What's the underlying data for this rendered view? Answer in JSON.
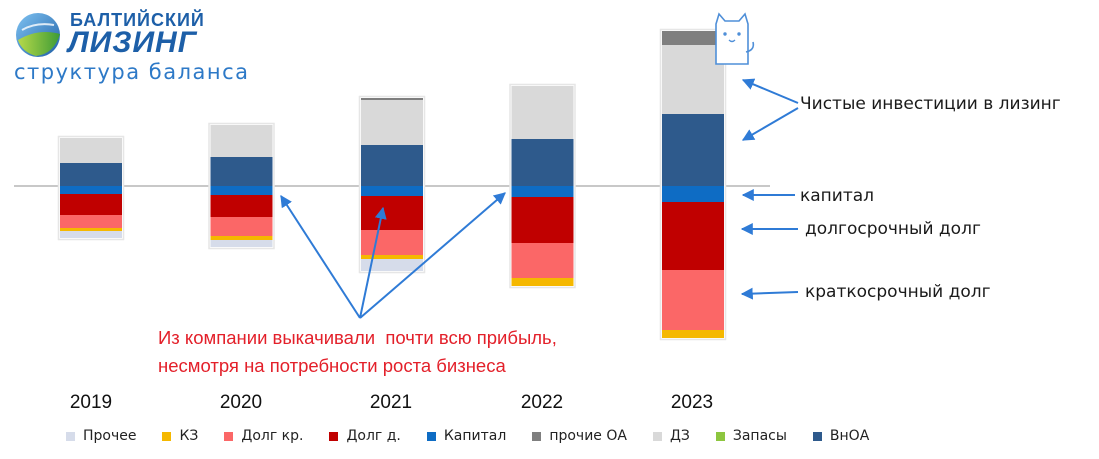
{
  "brand": {
    "line1": "БАЛТИЙСКИЙ",
    "line2": "ЛИЗИНГ",
    "subtitle": "структура баланса"
  },
  "colors": {
    "Прочее": "#d6dcea",
    "КЗ": "#f5b800",
    "Долг кр.": "#fb6767",
    "Долг д.": "#c00000",
    "Капитал": "#0e6cc4",
    "прочие ОА": "#7f7f7f",
    "ДЗ": "#d9d9d9",
    "Запасы": "#8dc63f",
    "ВнОА": "#2e5a8c",
    "arrow": "#2f7bd6",
    "note": "#e3202a"
  },
  "chart_data": {
    "type": "bar",
    "stacked": "diverging",
    "categories": [
      "2019",
      "2020",
      "2021",
      "2022",
      "2023"
    ],
    "assets_series": [
      {
        "name": "ВнОА",
        "values": [
          23,
          29,
          41,
          47,
          72
        ]
      },
      {
        "name": "ДЗ",
        "values": [
          25,
          32,
          45,
          53,
          69
        ]
      },
      {
        "name": "прочие ОА",
        "values": [
          0,
          0,
          2,
          0,
          14
        ]
      }
    ],
    "liabilities_series": [
      {
        "name": "Капитал",
        "values": [
          8,
          9,
          10,
          11,
          16
        ]
      },
      {
        "name": "Долг д.",
        "values": [
          21,
          22,
          34,
          46,
          68
        ]
      },
      {
        "name": "Долг кр.",
        "values": [
          13,
          19,
          25,
          35,
          60
        ]
      },
      {
        "name": "КЗ",
        "values": [
          3,
          4,
          4,
          8,
          8
        ]
      },
      {
        "name": "Прочее",
        "values": [
          7,
          7,
          12,
          0,
          0
        ]
      }
    ],
    "legend": [
      "Прочее",
      "КЗ",
      "Долг кр.",
      "Долг д.",
      "Капитал",
      "прочие ОА",
      "ДЗ",
      "Запасы",
      "ВнОА"
    ],
    "grid": false,
    "legend_position": "bottom"
  },
  "annotations": {
    "net_investment": "Чистые инвестиции в лизинг",
    "capital": "капитал",
    "long_debt": "долгосрочный долг",
    "short_debt": "краткосрочный долг",
    "note_line1": "Из компании выкачивали  почти всю прибыль,",
    "note_line2": "несмотря на потребности роста бизнеса"
  }
}
